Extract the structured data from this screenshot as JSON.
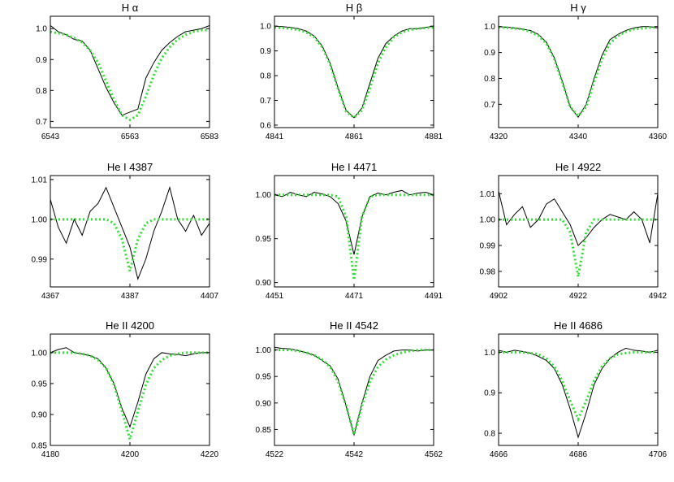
{
  "chart_data": [
    {
      "type": "line",
      "title": "H α",
      "x": [
        6543,
        6545,
        6547,
        6549,
        6551,
        6553,
        6555,
        6557,
        6559,
        6561,
        6563,
        6565,
        6567,
        6569,
        6571,
        6573,
        6575,
        6577,
        6579,
        6581,
        6583
      ],
      "series": [
        {
          "color": "#000000",
          "linestyle": "solid",
          "values": [
            1.01,
            0.99,
            0.98,
            0.965,
            0.96,
            0.93,
            0.87,
            0.81,
            0.76,
            0.72,
            0.73,
            0.74,
            0.84,
            0.89,
            0.93,
            0.955,
            0.975,
            0.99,
            0.995,
            1.0,
            1.01
          ]
        },
        {
          "color": "#33dd33",
          "linestyle": "dotted",
          "values": [
            0.99,
            0.985,
            0.98,
            0.97,
            0.955,
            0.93,
            0.89,
            0.83,
            0.77,
            0.72,
            0.705,
            0.72,
            0.78,
            0.85,
            0.905,
            0.94,
            0.965,
            0.98,
            0.99,
            0.995,
            0.995
          ]
        }
      ],
      "xlim": [
        6543,
        6583
      ],
      "xticks": [
        6543,
        6563,
        6583
      ],
      "ylim": [
        0.68,
        1.04
      ],
      "yticks": [
        0.7,
        0.8,
        0.9,
        {
          "value": 1,
          "label": "1.0"
        }
      ]
    },
    {
      "type": "line",
      "title": "H β",
      "x": [
        4841,
        4843,
        4845,
        4847,
        4849,
        4851,
        4853,
        4855,
        4857,
        4859,
        4861,
        4863,
        4865,
        4867,
        4869,
        4871,
        4873,
        4875,
        4877,
        4879,
        4881
      ],
      "series": [
        {
          "color": "#000000",
          "linestyle": "solid",
          "values": [
            1.0,
            0.998,
            0.995,
            0.99,
            0.98,
            0.96,
            0.92,
            0.85,
            0.75,
            0.66,
            0.63,
            0.67,
            0.77,
            0.87,
            0.93,
            0.96,
            0.98,
            0.99,
            0.99,
            0.995,
            1.0
          ]
        },
        {
          "color": "#33dd33",
          "linestyle": "dotted",
          "values": [
            0.995,
            0.993,
            0.99,
            0.985,
            0.975,
            0.955,
            0.915,
            0.845,
            0.745,
            0.655,
            0.63,
            0.66,
            0.75,
            0.85,
            0.915,
            0.955,
            0.975,
            0.985,
            0.99,
            0.993,
            0.995
          ]
        }
      ],
      "xlim": [
        4841,
        4881
      ],
      "xticks": [
        4841,
        4861,
        4881
      ],
      "ylim": [
        0.59,
        1.04
      ],
      "yticks": [
        0.6,
        0.7,
        0.8,
        0.9,
        {
          "value": 1,
          "label": "1.0"
        }
      ]
    },
    {
      "type": "line",
      "title": "H γ",
      "x": [
        4320,
        4322,
        4324,
        4326,
        4328,
        4330,
        4332,
        4334,
        4336,
        4338,
        4340,
        4342,
        4344,
        4346,
        4348,
        4350,
        4352,
        4354,
        4356,
        4358,
        4360
      ],
      "series": [
        {
          "color": "#000000",
          "linestyle": "solid",
          "values": [
            1.0,
            0.998,
            0.995,
            0.99,
            0.985,
            0.97,
            0.94,
            0.88,
            0.79,
            0.69,
            0.65,
            0.7,
            0.8,
            0.89,
            0.95,
            0.97,
            0.985,
            0.995,
            1.0,
            1.0,
            0.995
          ]
        },
        {
          "color": "#33dd33",
          "linestyle": "dotted",
          "values": [
            0.998,
            0.996,
            0.993,
            0.99,
            0.98,
            0.965,
            0.935,
            0.875,
            0.785,
            0.69,
            0.655,
            0.69,
            0.785,
            0.875,
            0.935,
            0.965,
            0.98,
            0.99,
            0.993,
            0.996,
            0.998
          ]
        }
      ],
      "xlim": [
        4320,
        4360
      ],
      "xticks": [
        4320,
        4340,
        4360
      ],
      "ylim": [
        0.61,
        1.04
      ],
      "yticks": [
        0.7,
        0.8,
        0.9,
        {
          "value": 1,
          "label": "1.0"
        }
      ]
    },
    {
      "type": "line",
      "title": "He I 4387",
      "x": [
        4367,
        4369,
        4371,
        4373,
        4375,
        4377,
        4379,
        4381,
        4383,
        4385,
        4387,
        4389,
        4391,
        4393,
        4395,
        4397,
        4399,
        4401,
        4403,
        4405,
        4407
      ],
      "series": [
        {
          "color": "#000000",
          "linestyle": "solid",
          "values": [
            1.005,
            0.998,
            0.994,
            1.0,
            0.996,
            1.002,
            1.004,
            1.008,
            1.003,
            0.998,
            0.993,
            0.985,
            0.99,
            0.997,
            1.002,
            1.008,
            1.0,
            0.997,
            1.001,
            0.996,
            0.999
          ]
        },
        {
          "color": "#33dd33",
          "linestyle": "dotted",
          "values": [
            1,
            1,
            1,
            1,
            1,
            1,
            1,
            1,
            0.999,
            0.995,
            0.987,
            0.995,
            0.999,
            1,
            1,
            1,
            1,
            1,
            1,
            1,
            1
          ]
        }
      ],
      "xlim": [
        4367,
        4407
      ],
      "xticks": [
        4367,
        4387,
        4407
      ],
      "ylim": [
        0.983,
        1.011
      ],
      "yticks": [
        0.99,
        {
          "value": 1,
          "label": "1.00"
        },
        1.01
      ]
    },
    {
      "type": "line",
      "title": "He I 4471",
      "x": [
        4451,
        4453,
        4455,
        4457,
        4459,
        4461,
        4463,
        4465,
        4467,
        4469,
        4471,
        4473,
        4475,
        4477,
        4479,
        4481,
        4483,
        4485,
        4487,
        4489,
        4491
      ],
      "series": [
        {
          "color": "#000000",
          "linestyle": "solid",
          "values": [
            1.0,
            0.998,
            1.003,
            1.0,
            0.998,
            1.003,
            1.001,
            0.998,
            0.99,
            0.97,
            0.932,
            0.975,
            0.998,
            1.002,
            1.0,
            1.003,
            1.005,
            1.0,
            1.002,
            1.003,
            1.0
          ]
        },
        {
          "color": "#33dd33",
          "linestyle": "dotted",
          "values": [
            1,
            1,
            1,
            1,
            1,
            1,
            1,
            1,
            0.998,
            0.975,
            0.903,
            0.975,
            0.998,
            1,
            1,
            1,
            1,
            1,
            1,
            1,
            1
          ]
        }
      ],
      "xlim": [
        4451,
        4491
      ],
      "xticks": [
        4451,
        4471,
        4491
      ],
      "ylim": [
        0.895,
        1.022
      ],
      "yticks": [
        {
          "value": 0.9,
          "label": "0.90"
        },
        0.95,
        {
          "value": 1,
          "label": "1.00"
        }
      ]
    },
    {
      "type": "line",
      "title": "He I 4922",
      "x": [
        4902,
        4904,
        4906,
        4908,
        4910,
        4912,
        4914,
        4916,
        4918,
        4920,
        4922,
        4924,
        4926,
        4928,
        4930,
        4932,
        4934,
        4936,
        4938,
        4940,
        4942
      ],
      "series": [
        {
          "color": "#000000",
          "linestyle": "solid",
          "values": [
            1.011,
            0.998,
            1.002,
            1.005,
            0.997,
            1.0,
            1.006,
            1.008,
            1.003,
            0.998,
            0.99,
            0.993,
            0.997,
            1.0,
            1.002,
            1.001,
            1.0,
            1.003,
            1.0,
            0.991,
            1.01
          ]
        },
        {
          "color": "#33dd33",
          "linestyle": "dotted",
          "values": [
            1,
            1,
            1,
            1,
            1,
            1,
            1,
            1,
            1,
            0.995,
            0.978,
            0.995,
            1,
            1,
            1,
            1,
            1,
            1,
            1,
            1,
            1
          ]
        }
      ],
      "xlim": [
        4902,
        4942
      ],
      "xticks": [
        4902,
        4922,
        4942
      ],
      "ylim": [
        0.974,
        1.017
      ],
      "yticks": [
        0.98,
        0.99,
        {
          "value": 1,
          "label": "1.00"
        },
        1.01
      ]
    },
    {
      "type": "line",
      "title": "He II 4200",
      "x": [
        4180,
        4182,
        4184,
        4186,
        4188,
        4190,
        4192,
        4194,
        4196,
        4198,
        4200,
        4202,
        4204,
        4206,
        4208,
        4210,
        4212,
        4214,
        4216,
        4218,
        4220
      ],
      "series": [
        {
          "color": "#000000",
          "linestyle": "solid",
          "values": [
            1.0,
            1.005,
            1.008,
            1.0,
            0.998,
            0.995,
            0.99,
            0.975,
            0.95,
            0.91,
            0.88,
            0.92,
            0.965,
            0.99,
            1.0,
            0.998,
            0.997,
            0.995,
            0.998,
            1.0,
            1.0
          ]
        },
        {
          "color": "#33dd33",
          "linestyle": "dotted",
          "values": [
            1,
            1,
            1,
            1,
            0.998,
            0.995,
            0.988,
            0.975,
            0.948,
            0.905,
            0.86,
            0.905,
            0.948,
            0.975,
            0.988,
            0.995,
            0.998,
            1,
            1,
            1,
            1
          ]
        }
      ],
      "xlim": [
        4180,
        4220
      ],
      "xticks": [
        4180,
        4200,
        4220
      ],
      "ylim": [
        0.85,
        1.03
      ],
      "yticks": [
        0.85,
        {
          "value": 0.9,
          "label": "0.90"
        },
        0.95,
        {
          "value": 1,
          "label": "1.00"
        }
      ]
    },
    {
      "type": "line",
      "title": "He II 4542",
      "x": [
        4522,
        4524,
        4526,
        4528,
        4530,
        4532,
        4534,
        4536,
        4538,
        4540,
        4542,
        4544,
        4546,
        4548,
        4550,
        4552,
        4554,
        4556,
        4558,
        4560,
        4562
      ],
      "series": [
        {
          "color": "#000000",
          "linestyle": "solid",
          "values": [
            1.005,
            1.003,
            1.002,
            0.999,
            0.995,
            0.99,
            0.98,
            0.97,
            0.945,
            0.895,
            0.84,
            0.9,
            0.95,
            0.98,
            0.99,
            0.998,
            1.0,
            1.0,
            0.998,
            1.0,
            1.0
          ]
        },
        {
          "color": "#33dd33",
          "linestyle": "dotted",
          "values": [
            1,
            1,
            1,
            0.998,
            0.995,
            0.99,
            0.982,
            0.968,
            0.94,
            0.895,
            0.84,
            0.895,
            0.94,
            0.968,
            0.982,
            0.99,
            0.995,
            0.998,
            1,
            1,
            1
          ]
        }
      ],
      "xlim": [
        4522,
        4562
      ],
      "xticks": [
        4522,
        4542,
        4562
      ],
      "ylim": [
        0.82,
        1.03
      ],
      "yticks": [
        0.85,
        {
          "value": 0.9,
          "label": "0.90"
        },
        0.95,
        {
          "value": 1,
          "label": "1.00"
        }
      ]
    },
    {
      "type": "line",
      "title": "He II 4686",
      "x": [
        4666,
        4668,
        4670,
        4672,
        4674,
        4676,
        4678,
        4680,
        4682,
        4684,
        4686,
        4688,
        4690,
        4692,
        4694,
        4696,
        4698,
        4700,
        4702,
        4704,
        4706
      ],
      "series": [
        {
          "color": "#000000",
          "linestyle": "solid",
          "values": [
            1.005,
            1.0,
            1.005,
            1.002,
            0.998,
            0.99,
            0.98,
            0.96,
            0.92,
            0.86,
            0.79,
            0.85,
            0.92,
            0.96,
            0.985,
            1.0,
            1.01,
            1.005,
            1.003,
            1.0,
            1.005
          ]
        },
        {
          "color": "#33dd33",
          "linestyle": "dotted",
          "values": [
            1,
            1,
            1,
            1,
            0.998,
            0.995,
            0.985,
            0.965,
            0.93,
            0.88,
            0.835,
            0.88,
            0.93,
            0.965,
            0.985,
            0.995,
            0.998,
            1,
            1,
            1,
            1
          ]
        }
      ],
      "xlim": [
        4666,
        4706
      ],
      "xticks": [
        4666,
        4686,
        4706
      ],
      "ylim": [
        0.77,
        1.045
      ],
      "yticks": [
        0.8,
        0.9,
        {
          "value": 1,
          "label": "1.0"
        }
      ]
    }
  ]
}
